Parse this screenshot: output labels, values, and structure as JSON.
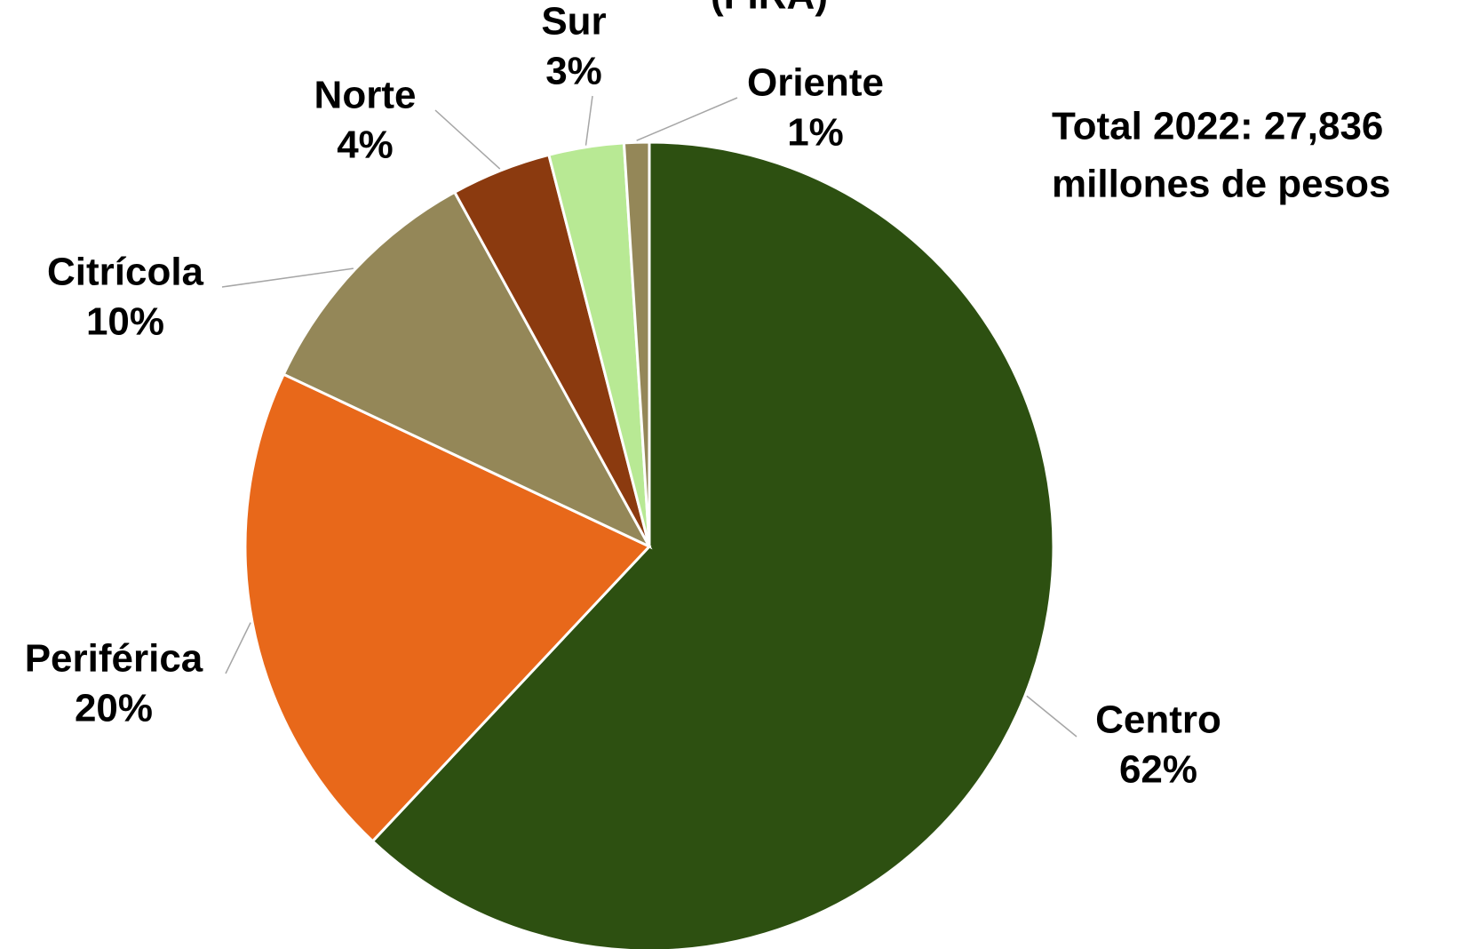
{
  "chart_data": {
    "type": "pie",
    "title": "(FIRA)",
    "annotation": [
      "Total 2022: 27,836",
      "millones de pesos"
    ],
    "categories": [
      "Centro",
      "Periférica",
      "Citrícola",
      "Norte",
      "Sur",
      "Oriente"
    ],
    "values": [
      62,
      20,
      10,
      4,
      3,
      1
    ],
    "value_labels": [
      "62%",
      "20%",
      "10%",
      "4%",
      "3%",
      "1%"
    ],
    "colors": [
      "#2d5011",
      "#e8681a",
      "#948758",
      "#8b3a0f",
      "#b8e994",
      "#948758"
    ]
  }
}
